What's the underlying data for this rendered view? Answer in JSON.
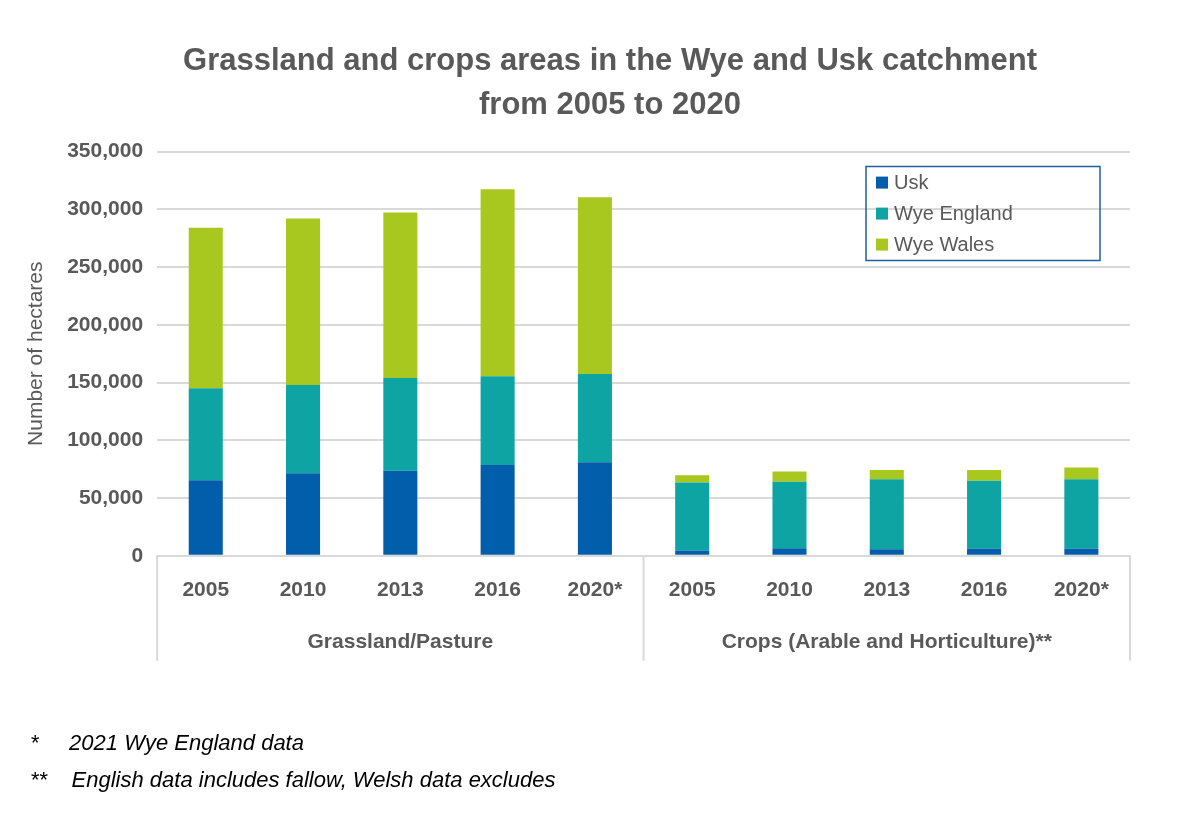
{
  "chart_data": {
    "type": "bar",
    "title": "Grassland and crops areas in the Wye and Usk catchment from 2005 to 2020",
    "ylabel": "Number of hectares",
    "categories": [
      "2005",
      "2010",
      "2013",
      "2016",
      "2020*",
      "2005",
      "2010",
      "2013",
      "2016",
      "2020*"
    ],
    "series": [
      {
        "name": "Usk",
        "color": "#005eaa",
        "values": [
          65400,
          71400,
          73600,
          78600,
          81100,
          4600,
          6600,
          5600,
          6300,
          6300
        ]
      },
      {
        "name": "Wye England",
        "color": "#0fa4a4",
        "values": [
          79600,
          76600,
          80400,
          76900,
          76400,
          58900,
          57600,
          60600,
          58700,
          59900
        ]
      },
      {
        "name": "Wye Wales",
        "color": "#a8c820",
        "values": [
          139000,
          144000,
          143200,
          161800,
          153000,
          6300,
          8900,
          8200,
          9400,
          10200
        ]
      }
    ],
    "stacked": true,
    "ylim": [
      0,
      350000
    ],
    "yticks": [
      {
        "value": 0,
        "label": "0"
      },
      {
        "value": 50000,
        "label": "50,000"
      },
      {
        "value": 100000,
        "label": "100,000"
      },
      {
        "value": 150000,
        "label": "150,000"
      },
      {
        "value": 200000,
        "label": "200,000"
      },
      {
        "value": 250000,
        "label": "250,000"
      },
      {
        "value": 300000,
        "label": "300,000"
      },
      {
        "value": 350000,
        "label": "350,000"
      }
    ],
    "grid": "y",
    "legend": "top right",
    "annotations": [
      "Grassland/Pasture",
      "Crops (Arable and Horticulture)**",
      "*     2021 Wye England data",
      "**    English data includes fallow, Welsh data excludes"
    ]
  }
}
